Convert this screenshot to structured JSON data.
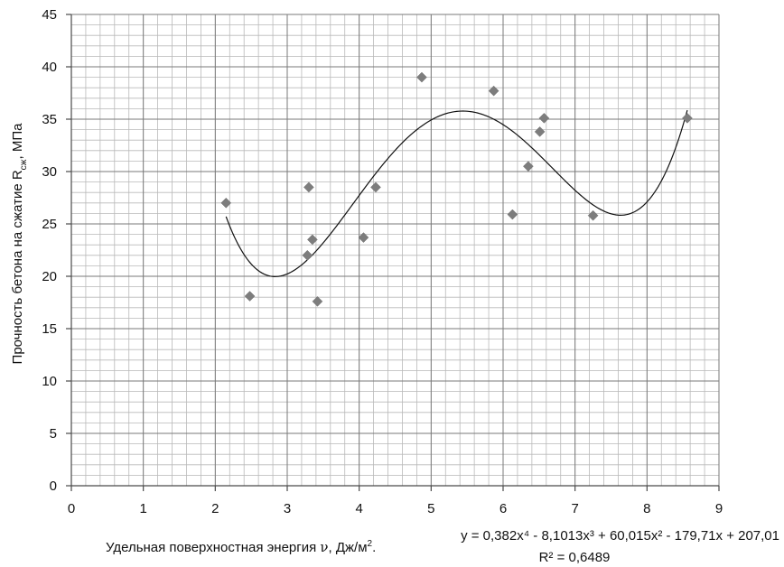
{
  "chart_data": {
    "type": "scatter",
    "xlabel_prefix": "Удельная поверхностная энергия ",
    "xlabel_symbol": "ν",
    "xlabel_suffix": ", Дж/м",
    "xlabel_sup": "2",
    "xlabel_end": ".",
    "ylabel_prefix": "Прочность бетона на сжатие R",
    "ylabel_sub": "сж",
    "ylabel_suffix": ", МПа",
    "xlim": [
      0,
      9
    ],
    "ylim": [
      0,
      45
    ],
    "x_ticks": [
      {
        "label": "0"
      },
      {
        "label": "1"
      },
      {
        "label": "2"
      },
      {
        "label": "3"
      },
      {
        "label": "4"
      },
      {
        "label": "5"
      },
      {
        "label": "6"
      },
      {
        "label": "7"
      },
      {
        "label": "8"
      },
      {
        "label": "9"
      }
    ],
    "y_ticks": [
      {
        "label": "0"
      },
      {
        "label": "5"
      },
      {
        "label": "10"
      },
      {
        "label": "15"
      },
      {
        "label": "20"
      },
      {
        "label": "25"
      },
      {
        "label": "30"
      },
      {
        "label": "35"
      },
      {
        "label": "40"
      },
      {
        "label": "45"
      }
    ],
    "grid": true,
    "series": [
      {
        "points": [
          {
            "x": 2.15,
            "y": 27.0
          },
          {
            "x": 2.48,
            "y": 18.1
          },
          {
            "x": 3.28,
            "y": 22.0
          },
          {
            "x": 3.3,
            "y": 28.5
          },
          {
            "x": 3.35,
            "y": 23.5
          },
          {
            "x": 3.42,
            "y": 17.6
          },
          {
            "x": 4.06,
            "y": 23.7
          },
          {
            "x": 4.23,
            "y": 28.5
          },
          {
            "x": 4.87,
            "y": 39.0
          },
          {
            "x": 5.87,
            "y": 37.7
          },
          {
            "x": 6.13,
            "y": 25.9
          },
          {
            "x": 6.35,
            "y": 30.5
          },
          {
            "x": 6.51,
            "y": 33.8
          },
          {
            "x": 6.57,
            "y": 35.1
          },
          {
            "x": 7.25,
            "y": 25.8
          },
          {
            "x": 8.56,
            "y": 35.1
          }
        ]
      }
    ],
    "trendline": {
      "type": "polynomial",
      "order": 4,
      "coefficients_desc": [
        0.382,
        -8.1013,
        60.015,
        -179.71,
        207.01
      ],
      "x_range": [
        2.15,
        8.56
      ],
      "equation_text": "y = 0,382x⁴ - 8,1013x³ + 60,015x² - 179,71x + 207,01",
      "r2_text": "R² = 0,6489"
    }
  }
}
